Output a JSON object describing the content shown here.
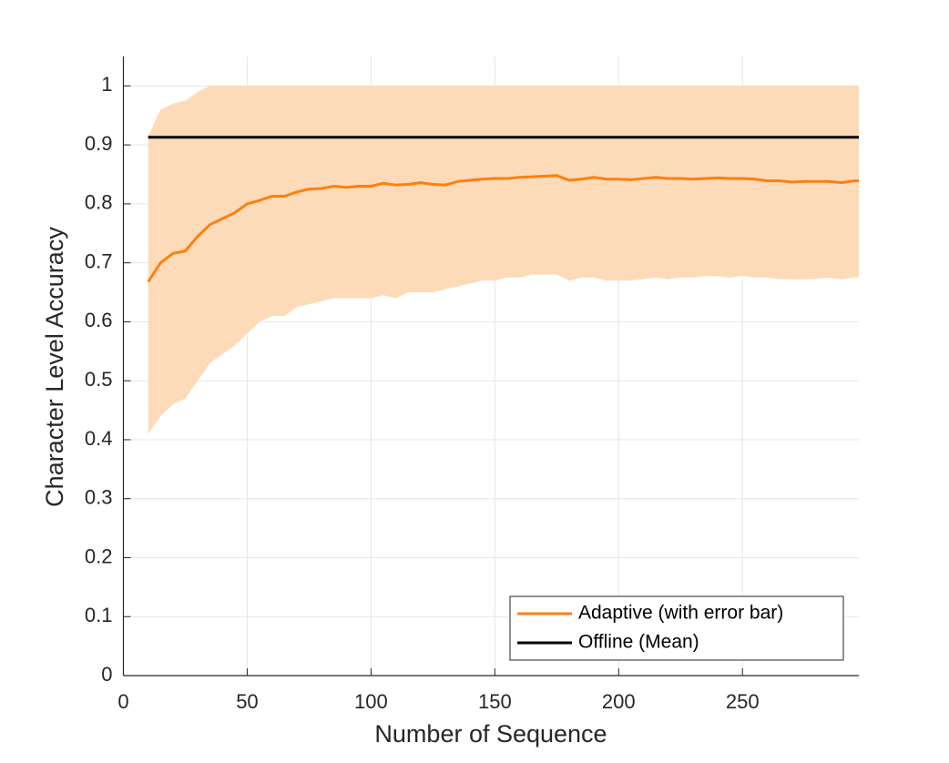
{
  "chart_data": {
    "type": "line",
    "x_label": "Number of Sequence",
    "y_label": "Character Level Accuracy",
    "xlim": [
      0,
      297
    ],
    "ylim": [
      0,
      1.05
    ],
    "xticks": [
      0,
      50,
      100,
      150,
      200,
      250
    ],
    "yticks": [
      0,
      0.1,
      0.2,
      0.3,
      0.4,
      0.5,
      0.6,
      0.7,
      0.8,
      0.9,
      1
    ],
    "grid": true,
    "legend": "lower right",
    "band_color": "#fddbb9",
    "series": [
      {
        "name": "Adaptive (with error bar)",
        "color": "#ff7f0e",
        "x": [
          10,
          15,
          20,
          25,
          30,
          35,
          40,
          45,
          50,
          55,
          60,
          65,
          70,
          75,
          80,
          85,
          90,
          95,
          100,
          105,
          110,
          115,
          120,
          125,
          130,
          135,
          140,
          145,
          150,
          155,
          160,
          165,
          170,
          175,
          180,
          185,
          190,
          195,
          200,
          205,
          210,
          215,
          220,
          225,
          230,
          235,
          240,
          245,
          250,
          255,
          260,
          265,
          270,
          275,
          280,
          285,
          290,
          295,
          297
        ],
        "values": [
          0.668,
          0.7,
          0.716,
          0.72,
          0.745,
          0.765,
          0.775,
          0.785,
          0.8,
          0.806,
          0.813,
          0.813,
          0.82,
          0.825,
          0.826,
          0.83,
          0.828,
          0.83,
          0.83,
          0.835,
          0.832,
          0.833,
          0.836,
          0.833,
          0.832,
          0.838,
          0.84,
          0.842,
          0.843,
          0.843,
          0.845,
          0.846,
          0.847,
          0.848,
          0.84,
          0.842,
          0.845,
          0.842,
          0.842,
          0.841,
          0.843,
          0.845,
          0.843,
          0.843,
          0.842,
          0.843,
          0.844,
          0.843,
          0.843,
          0.842,
          0.839,
          0.839,
          0.837,
          0.838,
          0.838,
          0.838,
          0.836,
          0.839,
          0.839
        ],
        "upper": [
          0.915,
          0.96,
          0.97,
          0.975,
          0.99,
          1,
          1,
          1,
          1,
          1,
          1,
          1,
          1,
          1,
          1,
          1,
          1,
          1,
          1,
          1,
          1,
          1,
          1,
          1,
          1,
          1,
          1,
          1,
          1,
          1,
          1,
          1,
          1,
          1,
          1,
          1,
          1,
          1,
          1,
          1,
          1,
          1,
          1,
          1,
          1,
          1,
          1,
          1,
          1,
          1,
          1,
          1,
          1,
          1,
          1,
          1,
          1,
          1,
          1
        ],
        "lower": [
          0.41,
          0.44,
          0.46,
          0.47,
          0.5,
          0.53,
          0.545,
          0.56,
          0.58,
          0.6,
          0.61,
          0.61,
          0.625,
          0.63,
          0.635,
          0.64,
          0.64,
          0.64,
          0.64,
          0.645,
          0.64,
          0.65,
          0.65,
          0.65,
          0.655,
          0.66,
          0.665,
          0.67,
          0.67,
          0.675,
          0.675,
          0.68,
          0.68,
          0.68,
          0.67,
          0.675,
          0.675,
          0.67,
          0.67,
          0.67,
          0.672,
          0.675,
          0.672,
          0.675,
          0.675,
          0.678,
          0.677,
          0.675,
          0.678,
          0.675,
          0.675,
          0.672,
          0.672,
          0.672,
          0.673,
          0.675,
          0.672,
          0.675,
          0.676
        ]
      },
      {
        "name": "Offline (Mean)",
        "color": "#000000",
        "x": [
          10,
          297
        ],
        "values": [
          0.913,
          0.913
        ]
      }
    ]
  }
}
